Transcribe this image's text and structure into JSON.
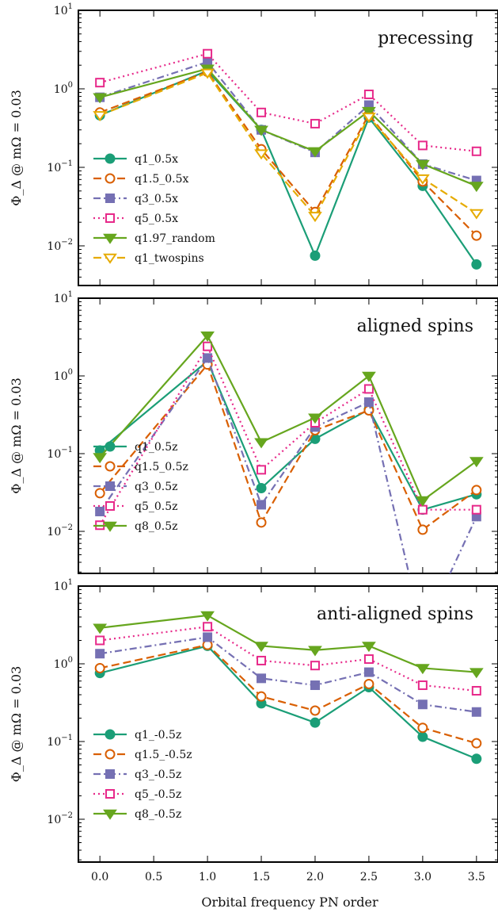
{
  "figure": {
    "xlabel": "Orbital frequency PN order",
    "ylabel": "Φ_Δ @ mΩ = 0.03",
    "x_ticks": [
      0.0,
      0.5,
      1.0,
      1.5,
      2.0,
      2.5,
      3.0,
      3.5
    ],
    "x_tick_labels": [
      "0.0",
      "0.5",
      "1.0",
      "1.5",
      "2.0",
      "2.5",
      "3.0",
      "3.5"
    ],
    "y_tick_labels": [
      "10^1",
      "10^0",
      "10^-1",
      "10^-2"
    ]
  },
  "colors": {
    "teal": "#1b9e77",
    "orange": "#d95f02",
    "purple": "#7570b3",
    "pink": "#e7298a",
    "green": "#66a61e",
    "yellow": "#e6ab02"
  },
  "chart_data": [
    {
      "type": "line",
      "title": "precessing",
      "yscale": "log",
      "ylim": [
        0.003,
        10
      ],
      "xlim": [
        -0.2,
        3.7
      ],
      "legend": "lower-left",
      "x": [
        0.0,
        1.0,
        1.5,
        2.0,
        2.5,
        3.0,
        3.5
      ],
      "series": [
        {
          "name": "q1_0.5x",
          "color": "#1b9e77",
          "marker": "circle",
          "filled": true,
          "dash": "solid",
          "values": [
            0.46,
            1.7,
            0.3,
            0.0075,
            0.43,
            0.058,
            0.0058
          ]
        },
        {
          "name": "q1.5_0.5x",
          "color": "#d95f02",
          "marker": "circle",
          "filled": false,
          "dash": "dashed",
          "values": [
            0.5,
            1.65,
            0.17,
            0.027,
            0.47,
            0.066,
            0.0135
          ]
        },
        {
          "name": "q3_0.5x",
          "color": "#7570b3",
          "marker": "square",
          "filled": true,
          "dash": "dashdot",
          "values": [
            0.78,
            2.2,
            0.3,
            0.155,
            0.62,
            0.11,
            0.068
          ]
        },
        {
          "name": "q5_0.5x",
          "color": "#e7298a",
          "marker": "square",
          "filled": false,
          "dash": "dotted",
          "values": [
            1.2,
            2.8,
            0.5,
            0.36,
            0.85,
            0.19,
            0.16
          ]
        },
        {
          "name": "q1.97_random",
          "color": "#66a61e",
          "marker": "triangle",
          "filled": true,
          "dash": "solid",
          "values": [
            0.78,
            1.8,
            0.3,
            0.16,
            0.52,
            0.11,
            0.058
          ]
        },
        {
          "name": "q1_twospins",
          "color": "#e6ab02",
          "marker": "triangle",
          "filled": false,
          "dash": "dashed",
          "values": [
            0.46,
            1.6,
            0.15,
            0.024,
            0.44,
            0.072,
            0.026
          ]
        }
      ]
    },
    {
      "type": "line",
      "title": "aligned spins",
      "yscale": "log",
      "ylim": [
        0.004,
        10
      ],
      "xlim": [
        -0.2,
        3.7
      ],
      "legend": "lower-left",
      "x": [
        0.0,
        1.0,
        1.5,
        2.0,
        2.5,
        3.0,
        3.5
      ],
      "series": [
        {
          "name": "q1_0.5z",
          "color": "#1b9e77",
          "marker": "circle",
          "filled": true,
          "dash": "solid",
          "values": [
            0.11,
            1.55,
            0.036,
            0.155,
            0.37,
            0.019,
            0.03
          ]
        },
        {
          "name": "q1.5_0.5z",
          "color": "#d95f02",
          "marker": "circle",
          "filled": false,
          "dash": "dashed",
          "values": [
            0.031,
            1.4,
            0.013,
            0.2,
            0.36,
            0.0105,
            0.034
          ]
        },
        {
          "name": "q3_0.5z",
          "color": "#7570b3",
          "marker": "square",
          "filled": true,
          "dash": "dashdot",
          "values": [
            0.018,
            1.7,
            0.022,
            0.22,
            0.46,
            0.0005,
            0.0155
          ]
        },
        {
          "name": "q5_0.5z",
          "color": "#e7298a",
          "marker": "square",
          "filled": false,
          "dash": "dotted",
          "values": [
            0.012,
            2.4,
            0.062,
            0.25,
            0.68,
            0.019,
            0.019
          ]
        },
        {
          "name": "q8_0.5z",
          "color": "#66a61e",
          "marker": "triangle",
          "filled": true,
          "dash": "solid",
          "values": [
            0.09,
            3.3,
            0.14,
            0.29,
            1.0,
            0.025,
            0.08
          ]
        }
      ]
    },
    {
      "type": "line",
      "title": "anti-aligned spins",
      "yscale": "log",
      "ylim": [
        0.003,
        10
      ],
      "xlim": [
        -0.2,
        3.7
      ],
      "legend": "lower-left",
      "x": [
        0.0,
        1.0,
        1.5,
        2.0,
        2.5,
        3.0,
        3.5
      ],
      "series": [
        {
          "name": "q1_-0.5z",
          "color": "#1b9e77",
          "marker": "circle",
          "filled": true,
          "dash": "solid",
          "values": [
            0.76,
            1.7,
            0.31,
            0.175,
            0.5,
            0.115,
            0.06
          ]
        },
        {
          "name": "q1.5_-0.5z",
          "color": "#d95f02",
          "marker": "circle",
          "filled": false,
          "dash": "dashed",
          "values": [
            0.88,
            1.75,
            0.38,
            0.25,
            0.55,
            0.15,
            0.095
          ]
        },
        {
          "name": "q3_-0.5z",
          "color": "#7570b3",
          "marker": "square",
          "filled": true,
          "dash": "dashdot",
          "values": [
            1.35,
            2.2,
            0.65,
            0.53,
            0.78,
            0.3,
            0.24
          ]
        },
        {
          "name": "q5_-0.5z",
          "color": "#e7298a",
          "marker": "square",
          "filled": false,
          "dash": "dotted",
          "values": [
            2.0,
            3.0,
            1.1,
            0.95,
            1.15,
            0.53,
            0.45
          ]
        },
        {
          "name": "q8_-0.5z",
          "color": "#66a61e",
          "marker": "triangle",
          "filled": true,
          "dash": "solid",
          "values": [
            2.9,
            4.2,
            1.7,
            1.5,
            1.7,
            0.88,
            0.78
          ]
        }
      ]
    }
  ]
}
